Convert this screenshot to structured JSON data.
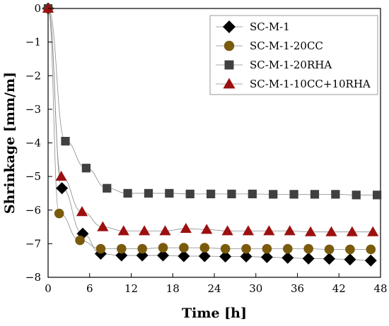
{
  "chart_data": {
    "type": "scatter",
    "title": "",
    "xlabel": "Time [h]",
    "ylabel": "Shrinkage [mm/m]",
    "xlim": [
      0,
      48
    ],
    "ylim": [
      -8,
      0
    ],
    "xticks": [
      0,
      6,
      12,
      18,
      24,
      30,
      36,
      42,
      48
    ],
    "yticks": [
      0,
      -1,
      -2,
      -3,
      -4,
      -5,
      -6,
      -7,
      -8
    ],
    "grid": false,
    "legend_position": "top-right",
    "x": [
      0,
      2,
      5,
      8,
      11,
      14,
      17,
      20,
      23,
      26,
      29,
      32,
      35,
      38,
      41,
      44,
      47
    ],
    "series": [
      {
        "name": "SC-M-1",
        "marker": "diamond",
        "color": "#000000",
        "points": [
          [
            0,
            0
          ],
          [
            2,
            -5.35
          ],
          [
            5,
            -6.7
          ],
          [
            7.6,
            -7.3
          ],
          [
            10.6,
            -7.35
          ],
          [
            13.6,
            -7.35
          ],
          [
            16.6,
            -7.35
          ],
          [
            19.6,
            -7.37
          ],
          [
            22.6,
            -7.37
          ],
          [
            25.6,
            -7.38
          ],
          [
            28.6,
            -7.38
          ],
          [
            31.6,
            -7.4
          ],
          [
            34.6,
            -7.42
          ],
          [
            37.6,
            -7.44
          ],
          [
            40.6,
            -7.45
          ],
          [
            43.6,
            -7.47
          ],
          [
            46.6,
            -7.5
          ]
        ]
      },
      {
        "name": "SC-M-1-20CC",
        "marker": "circle",
        "color": "#7a5b0c",
        "points": [
          [
            0,
            0
          ],
          [
            1.6,
            -6.1
          ],
          [
            4.6,
            -6.9
          ],
          [
            7.6,
            -7.15
          ],
          [
            10.6,
            -7.15
          ],
          [
            13.6,
            -7.15
          ],
          [
            16.6,
            -7.12
          ],
          [
            19.6,
            -7.12
          ],
          [
            22.6,
            -7.12
          ],
          [
            25.6,
            -7.15
          ],
          [
            28.6,
            -7.15
          ],
          [
            31.6,
            -7.15
          ],
          [
            34.6,
            -7.15
          ],
          [
            37.6,
            -7.15
          ],
          [
            40.6,
            -7.17
          ],
          [
            43.6,
            -7.17
          ],
          [
            46.6,
            -7.17
          ]
        ]
      },
      {
        "name": "SC-M-1-20RHA",
        "marker": "square",
        "color": "#404040",
        "points": [
          [
            0,
            0
          ],
          [
            2.5,
            -3.95
          ],
          [
            5.5,
            -4.75
          ],
          [
            8.5,
            -5.35
          ],
          [
            11.5,
            -5.5
          ],
          [
            14.5,
            -5.5
          ],
          [
            17.5,
            -5.5
          ],
          [
            20.5,
            -5.52
          ],
          [
            23.5,
            -5.52
          ],
          [
            26.5,
            -5.52
          ],
          [
            29.5,
            -5.52
          ],
          [
            32.5,
            -5.53
          ],
          [
            35.5,
            -5.53
          ],
          [
            38.5,
            -5.53
          ],
          [
            41.5,
            -5.53
          ],
          [
            44.5,
            -5.55
          ],
          [
            47.5,
            -5.55
          ]
        ]
      },
      {
        "name": "SC-M-1-10CC+10RHA",
        "marker": "triangle",
        "color": "#9c1010",
        "points": [
          [
            0,
            0
          ],
          [
            1.9,
            -5.0
          ],
          [
            4.9,
            -6.05
          ],
          [
            7.9,
            -6.5
          ],
          [
            10.9,
            -6.62
          ],
          [
            13.9,
            -6.62
          ],
          [
            16.9,
            -6.62
          ],
          [
            19.9,
            -6.55
          ],
          [
            22.9,
            -6.58
          ],
          [
            25.9,
            -6.62
          ],
          [
            28.9,
            -6.62
          ],
          [
            31.9,
            -6.62
          ],
          [
            34.9,
            -6.62
          ],
          [
            37.9,
            -6.65
          ],
          [
            40.9,
            -6.65
          ],
          [
            43.9,
            -6.65
          ],
          [
            46.9,
            -6.65
          ]
        ]
      }
    ]
  }
}
